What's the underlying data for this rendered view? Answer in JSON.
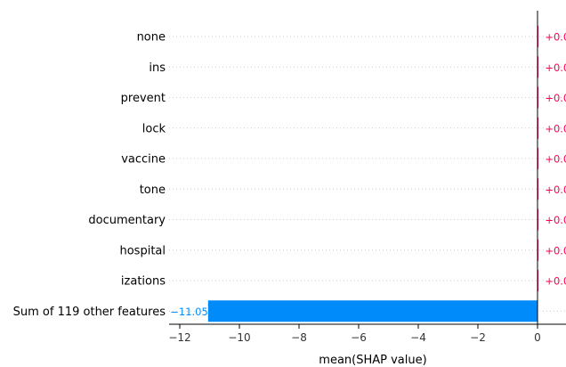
{
  "chart_data": {
    "type": "bar",
    "orientation": "horizontal",
    "title": "",
    "xlabel": "mean(SHAP value)",
    "ylabel": "",
    "xlim": [
      -12.3,
      0.9
    ],
    "xticks": [
      -12,
      -10,
      -8,
      -6,
      -4,
      -2,
      0
    ],
    "xtick_labels": [
      "−12",
      "−10",
      "−8",
      "−6",
      "−4",
      "−2",
      "0"
    ],
    "grid": "dotted horizontal guides",
    "categories": [
      "none",
      "ins",
      "prevent",
      "lock",
      "vaccine",
      "tone",
      "documentary",
      "hospital",
      "izations",
      "Sum of 119 other features"
    ],
    "values": [
      0.01,
      0.01,
      0.01,
      0.01,
      0.01,
      0.01,
      0.01,
      0.01,
      0.01,
      -11.05
    ],
    "value_labels": [
      "+0.0",
      "+0.0",
      "+0.0",
      "+0.0",
      "+0.0",
      "+0.0",
      "+0.0",
      "+0.0",
      "+0.0",
      "−11.05"
    ],
    "colors": {
      "positive": "#ff0051",
      "negative": "#008bfb",
      "axis": "#000000",
      "guide": "#cccccc"
    }
  }
}
